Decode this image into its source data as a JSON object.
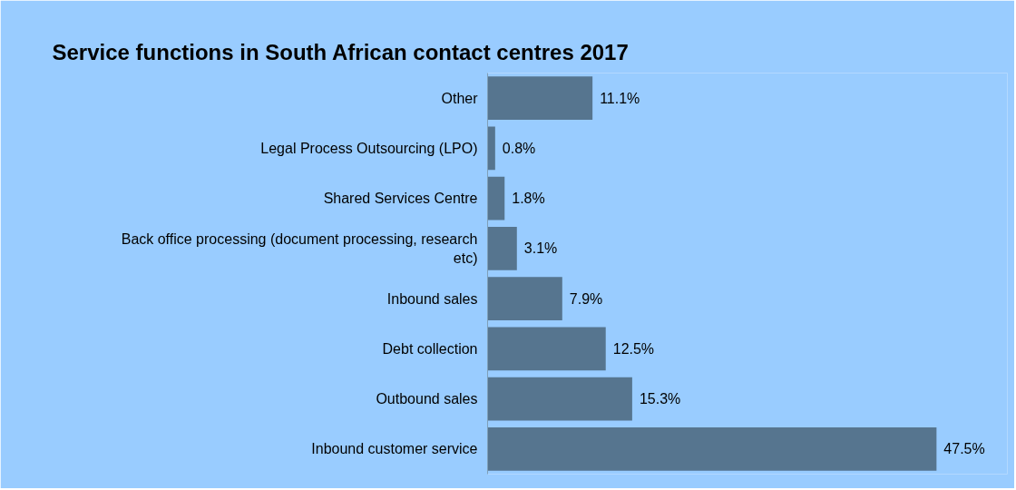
{
  "chart_data": {
    "type": "bar",
    "orientation": "horizontal",
    "title": "Service functions in South African contact centres 2017",
    "categories": [
      "Other",
      "Legal Process Outsourcing (LPO)",
      "Shared Services Centre",
      "Back office processing (document processing, research etc)",
      "Inbound sales",
      "Debt collection",
      "Outbound sales",
      "Inbound customer service"
    ],
    "values": [
      11.1,
      0.8,
      1.8,
      3.1,
      7.9,
      12.5,
      15.3,
      47.5
    ],
    "value_labels": [
      "11.1%",
      "0.8%",
      "1.8%",
      "3.1%",
      "7.9%",
      "12.5%",
      "15.3%",
      "47.5%"
    ],
    "color": "#56758f",
    "xlim": [
      0,
      55
    ],
    "tick_labels": "y",
    "grid": false
  }
}
